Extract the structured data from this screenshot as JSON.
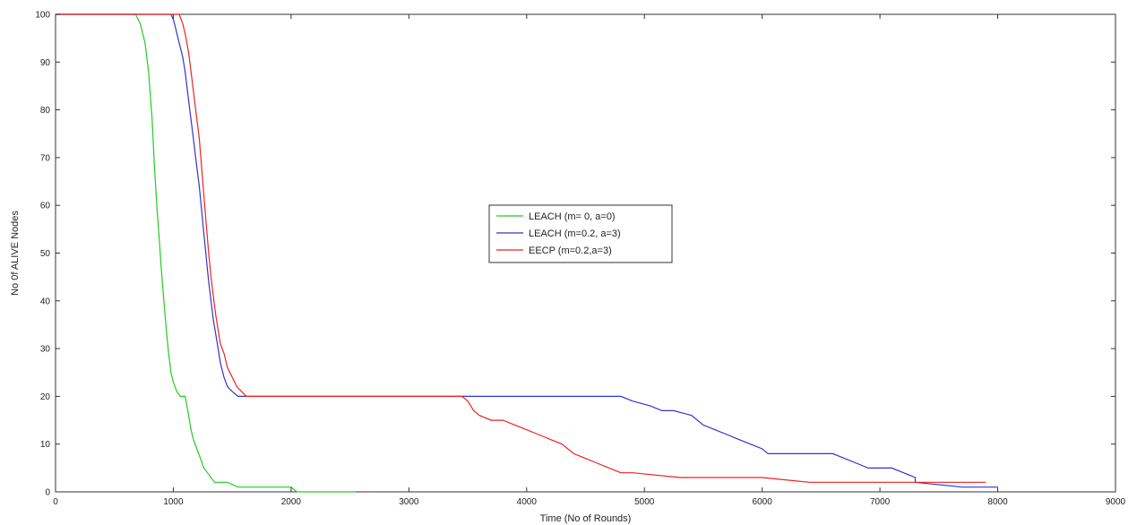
{
  "chart_data": {
    "type": "line",
    "title": "",
    "xlabel": "Time (No of Rounds)",
    "ylabel": "No 0f ALIVE Nodes",
    "xlim": [
      0,
      9000
    ],
    "ylim": [
      0,
      100
    ],
    "xticks": [
      0,
      1000,
      2000,
      3000,
      4000,
      5000,
      6000,
      7000,
      8000,
      9000
    ],
    "yticks": [
      0,
      10,
      20,
      30,
      40,
      50,
      60,
      70,
      80,
      90,
      100
    ],
    "grid": false,
    "legend_position": "center",
    "series": [
      {
        "name": "LEACH (m= 0, a=0)",
        "color": "#22cc22",
        "x": [
          0,
          680,
          720,
          760,
          790,
          820,
          840,
          860,
          880,
          900,
          920,
          940,
          960,
          980,
          1000,
          1030,
          1060,
          1100,
          1130,
          1150,
          1170,
          1200,
          1230,
          1260,
          1290,
          1320,
          1350,
          1400,
          1460,
          1550,
          1650,
          1750,
          1850,
          2000,
          2050,
          2200,
          2400,
          2550
        ],
        "y": [
          100,
          100,
          98,
          94,
          88,
          78,
          68,
          60,
          53,
          46,
          40,
          34,
          29,
          25,
          23,
          21,
          20,
          20,
          16,
          13,
          11,
          9,
          7,
          5,
          4,
          3,
          2,
          2,
          2,
          1,
          1,
          1,
          1,
          1,
          0,
          0,
          0,
          0
        ]
      },
      {
        "name": "LEACH (m=0.2, a=3)",
        "color": "#3333cc",
        "x": [
          0,
          900,
          980,
          1000,
          1020,
          1050,
          1080,
          1100,
          1120,
          1140,
          1160,
          1180,
          1200,
          1220,
          1240,
          1260,
          1280,
          1300,
          1320,
          1340,
          1360,
          1380,
          1400,
          1430,
          1460,
          1500,
          1550,
          1600,
          1700,
          2000,
          3000,
          4000,
          4800,
          4900,
          5050,
          5150,
          5250,
          5400,
          5500,
          5600,
          5700,
          5800,
          5900,
          6000,
          6050,
          6100,
          6200,
          6400,
          6600,
          6700,
          6800,
          6900,
          7100,
          7200,
          7300,
          7300,
          7700,
          7800,
          8000
        ],
        "y": [
          100,
          100,
          100,
          99,
          97,
          94,
          91,
          88,
          84,
          80,
          76,
          72,
          68,
          64,
          59,
          54,
          49,
          44,
          40,
          36,
          33,
          30,
          27,
          24,
          22,
          21,
          20,
          20,
          20,
          20,
          20,
          20,
          20,
          19,
          18,
          17,
          17,
          16,
          14,
          13,
          12,
          11,
          10,
          9,
          8,
          8,
          8,
          8,
          8,
          7,
          6,
          5,
          5,
          4,
          3,
          2,
          1,
          1,
          1
        ]
      },
      {
        "name": "EECP (m=0.2,a=3)",
        "color": "#ee2222",
        "x": [
          0,
          1050,
          1080,
          1100,
          1130,
          1160,
          1190,
          1220,
          1240,
          1260,
          1280,
          1300,
          1320,
          1340,
          1360,
          1380,
          1400,
          1430,
          1460,
          1500,
          1540,
          1580,
          1620,
          1650,
          2000,
          3000,
          3450,
          3500,
          3550,
          3600,
          3700,
          3800,
          3900,
          4000,
          4100,
          4200,
          4300,
          4350,
          4400,
          4500,
          4600,
          4700,
          4800,
          4900,
          5300,
          5500,
          6000,
          6400,
          7000,
          7500,
          7900
        ],
        "y": [
          100,
          100,
          98,
          96,
          92,
          86,
          80,
          74,
          68,
          62,
          56,
          50,
          45,
          41,
          37,
          34,
          31,
          29,
          26,
          24,
          22,
          21,
          20,
          20,
          20,
          20,
          20,
          19,
          17,
          16,
          15,
          15,
          14,
          13,
          12,
          11,
          10,
          9,
          8,
          7,
          6,
          5,
          4,
          4,
          3,
          3,
          3,
          2,
          2,
          2,
          2
        ]
      }
    ]
  }
}
